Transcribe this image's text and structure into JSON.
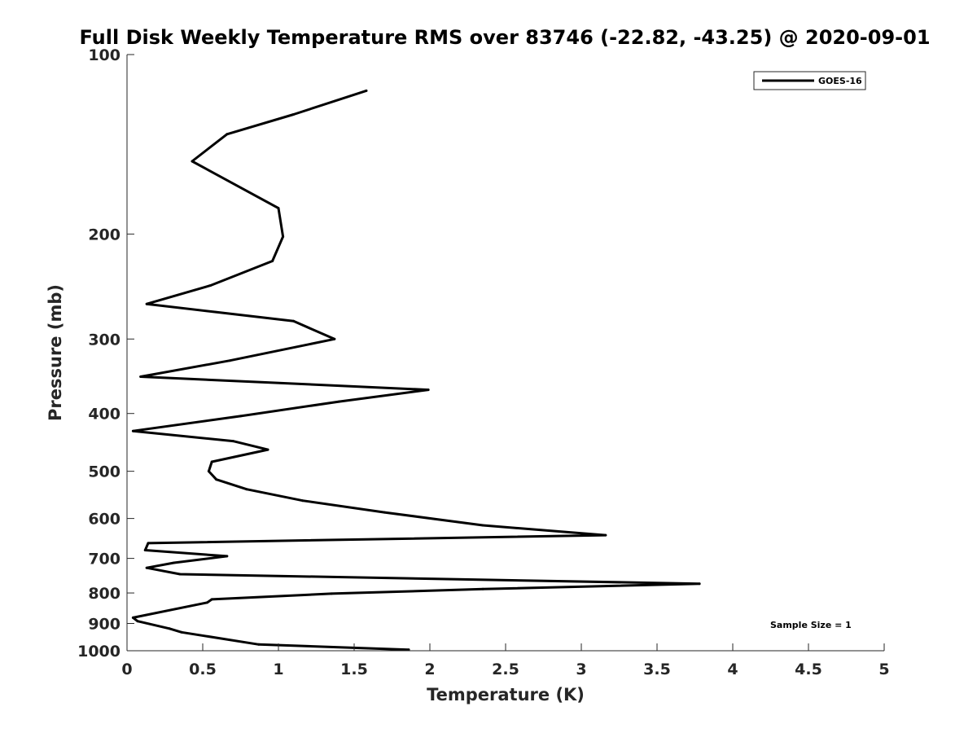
{
  "chart_data": {
    "type": "line",
    "title": "Full Disk Weekly Temperature RMS over 83746 (-22.82, -43.25) @ 2020-09-01",
    "xlabel": "Temperature (K)",
    "ylabel": "Pressure (mb)",
    "xlim": [
      0,
      5
    ],
    "ylim": [
      100,
      1000
    ],
    "y_scale": "log",
    "y_reversed": true,
    "grid": false,
    "legend_position": "top-right",
    "x_ticks": [
      "0",
      "0.5",
      "1",
      "1.5",
      "2",
      "2.5",
      "3",
      "3.5",
      "4",
      "4.5",
      "5"
    ],
    "y_ticks": [
      "100",
      "200",
      "300",
      "400",
      "500",
      "600",
      "700",
      "800",
      "900",
      "1000"
    ],
    "annotation": "Sample Size = 1",
    "series": [
      {
        "name": "GOES-16",
        "color": "#000000",
        "x": [
          1.58,
          1.1,
          0.66,
          0.43,
          1.0,
          1.03,
          0.96,
          0.55,
          0.13,
          1.1,
          1.37,
          0.68,
          0.09,
          1.99,
          1.4,
          0.75,
          0.04,
          0.7,
          0.93,
          0.56,
          0.54,
          0.59,
          0.79,
          1.16,
          1.7,
          2.35,
          3.16,
          0.14,
          0.12,
          0.66,
          0.31,
          0.13,
          0.35,
          3.78,
          2.35,
          1.35,
          0.56,
          0.53,
          0.04,
          0.07,
          0.28,
          0.36,
          0.87,
          1.86
        ],
        "y": [
          115,
          126,
          136,
          151,
          181,
          202,
          222,
          244,
          262,
          280,
          300,
          326,
          347,
          365,
          382,
          404,
          428,
          445,
          460,
          482,
          500,
          516,
          536,
          560,
          586,
          616,
          640,
          660,
          678,
          694,
          712,
          726,
          744,
          772,
          788,
          802,
          820,
          830,
          880,
          892,
          918,
          931,
          976,
          996
        ]
      }
    ]
  }
}
